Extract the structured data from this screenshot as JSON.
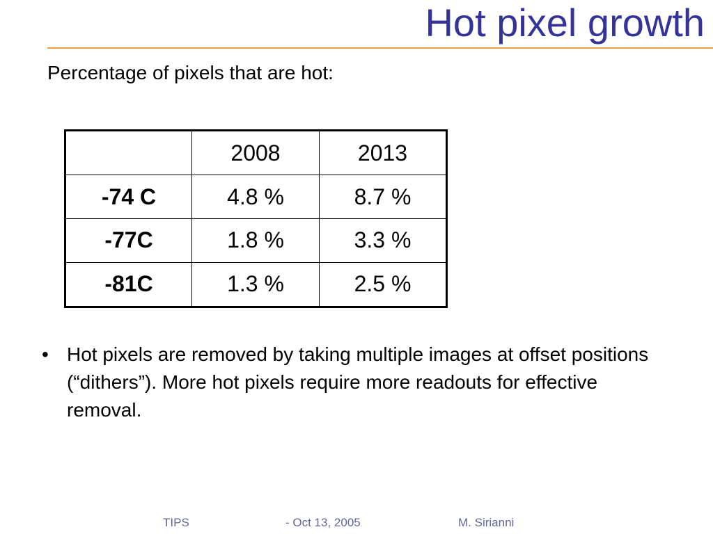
{
  "slide": {
    "title": "Hot pixel growth",
    "subtitle": "Percentage of pixels that are hot:"
  },
  "table": {
    "headers": [
      "",
      "2008",
      "2013"
    ],
    "rows": [
      {
        "label": "-74 C",
        "values": [
          "4.8 %",
          "8.7 %"
        ]
      },
      {
        "label": "-77C",
        "values": [
          "1.8 %",
          "3.3 %"
        ]
      },
      {
        "label": "-81C",
        "values": [
          "1.3 %",
          "2.5 %"
        ]
      }
    ]
  },
  "bullets": [
    {
      "marker": "•",
      "text": "Hot pixels are removed by taking multiple images at offset positions (“dithers”). More hot pixels require more readouts for effective removal."
    }
  ],
  "footer": {
    "left": "TIPS",
    "center": "- Oct 13, 2005",
    "right": "M. Sirianni"
  },
  "colors": {
    "title": "#333399",
    "rule": "#e6a23c",
    "footer": "#666699"
  }
}
